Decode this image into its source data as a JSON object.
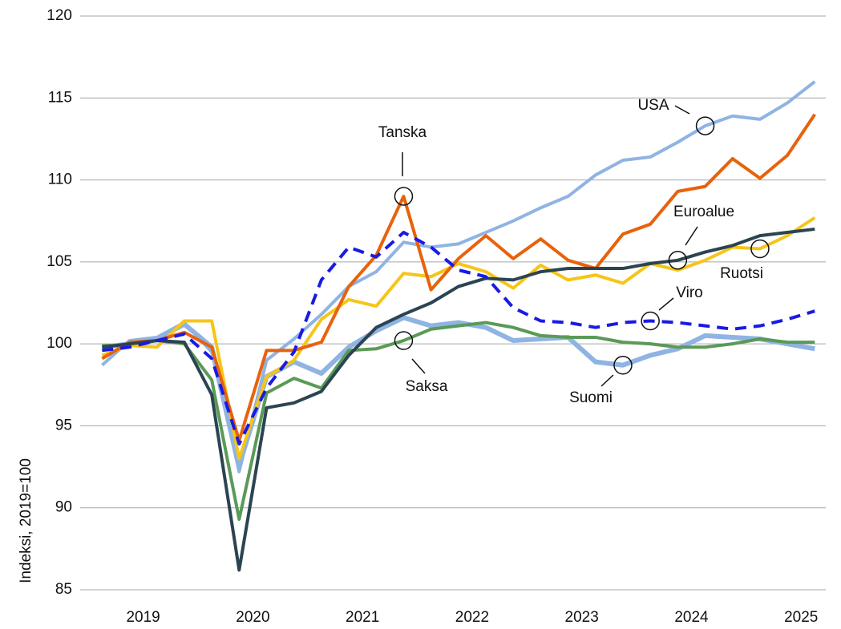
{
  "chart_data": {
    "type": "line",
    "y_label": "Indeksi, 2019=100",
    "x": [
      2019,
      2019.25,
      2019.5,
      2019.75,
      2020,
      2020.25,
      2020.5,
      2020.75,
      2021,
      2021.25,
      2021.5,
      2021.75,
      2022,
      2022.25,
      2022.5,
      2022.75,
      2023,
      2023.25,
      2023.5,
      2023.75,
      2024,
      2024.25,
      2024.5,
      2024.75,
      2025,
      2025.25,
      2025.5
    ],
    "xlim": [
      2018.8,
      2025.6
    ],
    "xticks": [
      {
        "value": 2019.375,
        "label": "2019"
      },
      {
        "value": 2020.375,
        "label": "2020"
      },
      {
        "value": 2021.375,
        "label": "2021"
      },
      {
        "value": 2022.375,
        "label": "2022"
      },
      {
        "value": 2023.375,
        "label": "2023"
      },
      {
        "value": 2024.375,
        "label": "2024"
      },
      {
        "value": 2025.375,
        "label": "2025"
      }
    ],
    "ylim": [
      85,
      120
    ],
    "yticks": [
      85,
      90,
      95,
      100,
      105,
      110,
      115,
      120
    ],
    "grid": true,
    "series": [
      {
        "name": "Suomi",
        "color": "#8fb4e3",
        "width": 6,
        "dashed": false,
        "values": [
          99.8,
          100,
          100.3,
          101.2,
          99.8,
          92.6,
          98,
          98.9,
          98.2,
          99.8,
          100.8,
          101.6,
          101.1,
          101.3,
          101,
          100.2,
          100.3,
          100.4,
          98.9,
          98.7,
          99.3,
          99.7,
          100.5,
          100.4,
          100.3,
          100,
          99.7
        ]
      },
      {
        "name": "Saksa",
        "color": "#5a9a57",
        "width": 4,
        "dashed": false,
        "values": [
          99.9,
          99.9,
          100.2,
          100,
          97.8,
          89.3,
          97,
          97.9,
          97.3,
          99.6,
          99.7,
          100.2,
          100.9,
          101.1,
          101.3,
          101,
          100.5,
          100.4,
          100.4,
          100.1,
          100,
          99.8,
          99.8,
          100,
          100.3,
          100.1,
          100.1
        ]
      },
      {
        "name": "USA",
        "color": "#8fb4e3",
        "width": 4,
        "dashed": false,
        "values": [
          98.7,
          100.2,
          100.4,
          101.3,
          99.5,
          92.2,
          99,
          100.3,
          101.8,
          103.5,
          104.4,
          106.2,
          105.9,
          106.1,
          106.8,
          107.5,
          108.3,
          109,
          110.3,
          111.2,
          111.4,
          112.3,
          113.3,
          113.9,
          113.7,
          114.7,
          116
        ]
      },
      {
        "name": "Ruotsi",
        "color": "#f5c518",
        "width": 4,
        "dashed": false,
        "values": [
          99.3,
          99.9,
          99.8,
          101.4,
          101.4,
          93,
          98,
          99,
          101.5,
          102.7,
          102.3,
          104.3,
          104.1,
          104.9,
          104.4,
          103.4,
          104.8,
          103.9,
          104.2,
          103.7,
          104.9,
          104.5,
          105.1,
          105.9,
          105.8,
          106.6,
          107.7
        ]
      },
      {
        "name": "Tanska",
        "color": "#e8620c",
        "width": 4,
        "dashed": false,
        "values": [
          99.1,
          100.1,
          100.2,
          100.7,
          99.8,
          94.1,
          99.6,
          99.6,
          100.1,
          103.5,
          105.4,
          109,
          103.3,
          105.2,
          106.6,
          105.2,
          106.4,
          105.1,
          104.6,
          106.7,
          107.3,
          109.3,
          109.6,
          111.3,
          110.1,
          111.5,
          114
        ]
      },
      {
        "name": "Euroalue",
        "color": "#2b4452",
        "width": 4,
        "dashed": false,
        "values": [
          99.8,
          100,
          100.2,
          100.1,
          96.9,
          86.2,
          96.1,
          96.4,
          97.1,
          99.3,
          101,
          101.8,
          102.5,
          103.5,
          104,
          103.9,
          104.4,
          104.6,
          104.6,
          104.6,
          104.9,
          105.1,
          105.6,
          106,
          106.6,
          106.8,
          107
        ]
      },
      {
        "name": "Viro",
        "color": "#1a1ae6",
        "width": 4,
        "dashed": true,
        "values": [
          99.6,
          99.8,
          100.2,
          100.6,
          99.1,
          93.9,
          97.3,
          99.5,
          103.9,
          105.9,
          105.3,
          106.8,
          105.9,
          104.5,
          104.1,
          102.2,
          101.4,
          101.3,
          101,
          101.3,
          101.4,
          101.3,
          101.1,
          100.9,
          101.1,
          101.5,
          102
        ]
      }
    ]
  }
}
